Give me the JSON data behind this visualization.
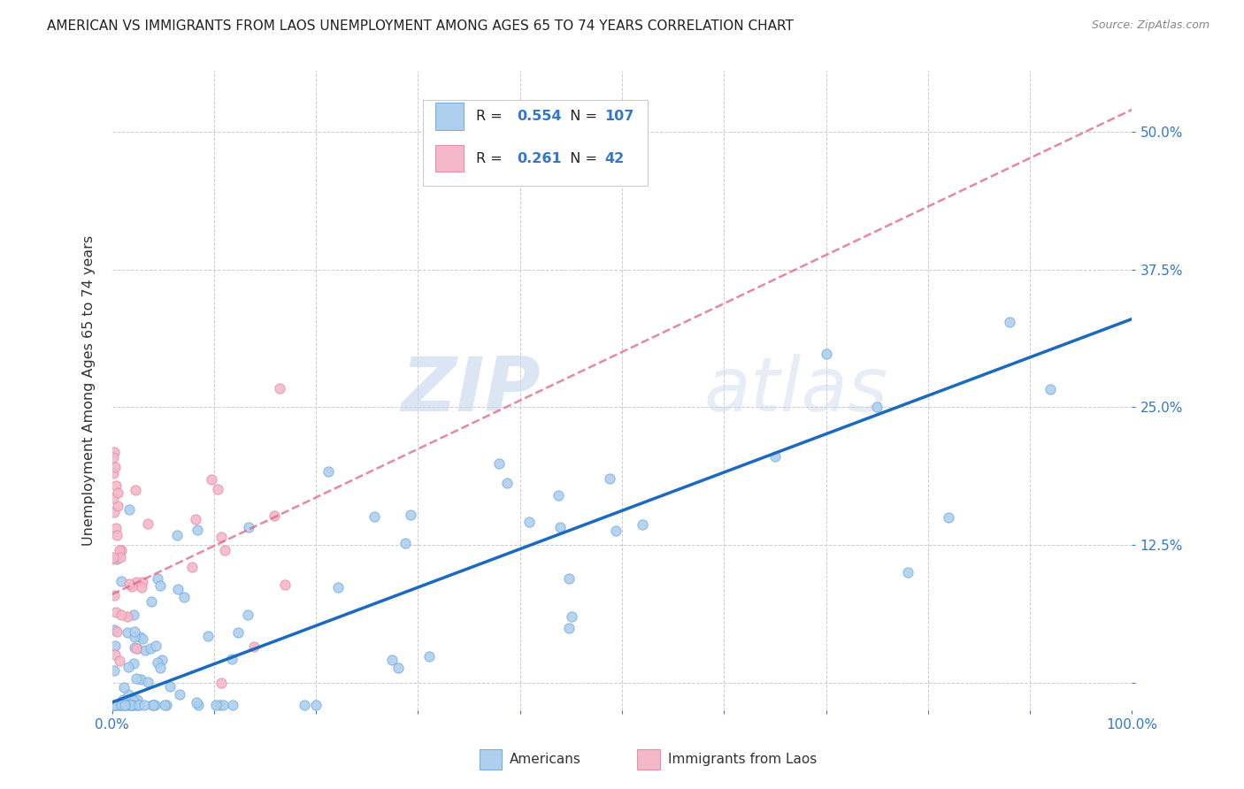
{
  "title": "AMERICAN VS IMMIGRANTS FROM LAOS UNEMPLOYMENT AMONG AGES 65 TO 74 YEARS CORRELATION CHART",
  "source": "Source: ZipAtlas.com",
  "ylabel": "Unemployment Among Ages 65 to 74 years",
  "xlim": [
    0.0,
    1.0
  ],
  "ylim": [
    -0.025,
    0.555
  ],
  "x_ticks": [
    0.0,
    0.1,
    0.2,
    0.3,
    0.4,
    0.5,
    0.6,
    0.7,
    0.8,
    0.9,
    1.0
  ],
  "x_tick_labels": [
    "0.0%",
    "",
    "",
    "",
    "",
    "",
    "",
    "",
    "",
    "",
    "100.0%"
  ],
  "y_ticks": [
    0.0,
    0.125,
    0.25,
    0.375,
    0.5
  ],
  "y_tick_labels": [
    "",
    "12.5%",
    "25.0%",
    "37.5%",
    "50.0%"
  ],
  "american_color": "#aecfee",
  "laos_color": "#f4b8c8",
  "american_edge": "#7aafe0",
  "laos_edge": "#e890a8",
  "trend_american_color": "#1a6bbf",
  "trend_laos_color": "#e06080",
  "watermark_zip": "ZIP",
  "watermark_atlas": "atlas",
  "legend_r_american": "0.554",
  "legend_n_american": "107",
  "legend_r_laos": "0.261",
  "legend_n_laos": "42",
  "trend_american_x0": 0.0,
  "trend_american_y0": -0.018,
  "trend_american_x1": 1.0,
  "trend_american_y1": 0.33,
  "trend_laos_x0": 0.0,
  "trend_laos_y0": 0.08,
  "trend_laos_x1": 1.0,
  "trend_laos_y1": 0.52
}
